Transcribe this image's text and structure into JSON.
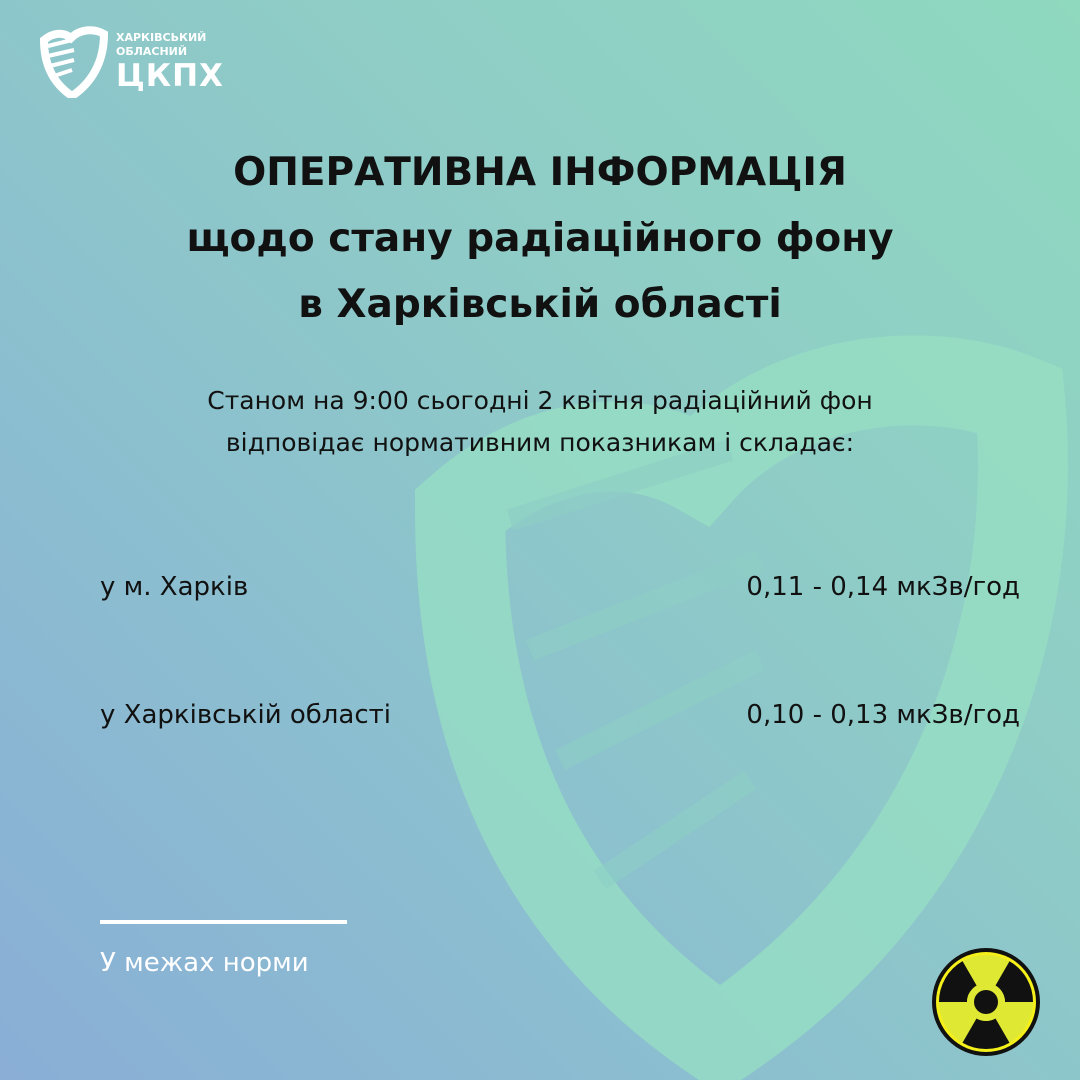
{
  "logo": {
    "line1": "ХАРКІВСЬКИЙ",
    "line2": "ОБЛАСНИЙ",
    "name": "ЦКПХ"
  },
  "title": {
    "line1": "ОПЕРАТИВНА ІНФОРМАЦІЯ",
    "line2": "щодо стану радіаційного фону",
    "line3": "в Харківській області"
  },
  "lead": {
    "line1": "Станом на 9:00 сьогодні 2 квітня радіаційний фон",
    "line2": "відповідає нормативним показникам і складає:"
  },
  "readings": [
    {
      "place": "у м. Харків",
      "value": "0,11 - 0,14 мкЗв/год"
    },
    {
      "place": "у Харківській області",
      "value": "0,10 - 0,13 мкЗв/год"
    }
  ],
  "footer": "У межах норми",
  "icons": {
    "logo": "shield-logo-icon",
    "status": "radiation-icon"
  },
  "colors": {
    "radiation_yellow": "#dfe832",
    "watermark": "#96e0c2"
  }
}
